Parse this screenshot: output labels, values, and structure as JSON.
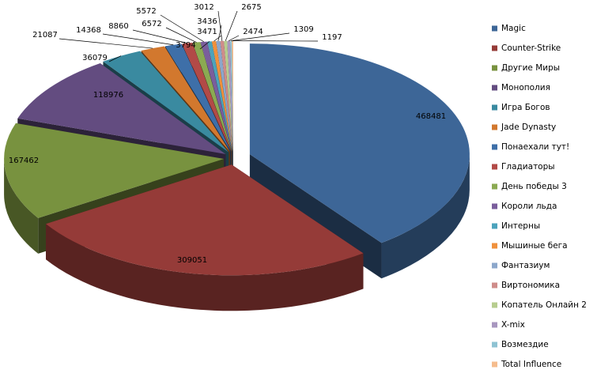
{
  "chart_data": {
    "type": "pie3d",
    "categories": [
      "Magic",
      "Counter-Strike",
      "Другие Миры",
      "Монополия",
      "Игра Богов",
      "Jade Dynasty",
      "Понаехали тут!",
      "Гладиаторы",
      "День победы 3",
      "Короли льда",
      "Интерны",
      "Мышиные бега",
      "Фантазиум",
      "Виртономика",
      "Копатель Онлайн 2",
      "X-mix",
      "Возмездие",
      "Total Influence"
    ],
    "values": [
      468481,
      309051,
      167462,
      118976,
      36079,
      21087,
      14368,
      8860,
      6572,
      5572,
      3794,
      3471,
      3436,
      3012,
      2675,
      2474,
      1309,
      1197
    ],
    "colors": [
      "#3D6697",
      "#953B38",
      "#78923F",
      "#634C80",
      "#3A8AA0",
      "#D2782E",
      "#3E6FA8",
      "#B24A47",
      "#8BAA52",
      "#7A5E9C",
      "#4CA3BC",
      "#F0913D",
      "#8CA7CB",
      "#CF8C8A",
      "#B7CD8F",
      "#A897BF",
      "#8EC3D3",
      "#F5BC8D"
    ],
    "legend": "right"
  }
}
